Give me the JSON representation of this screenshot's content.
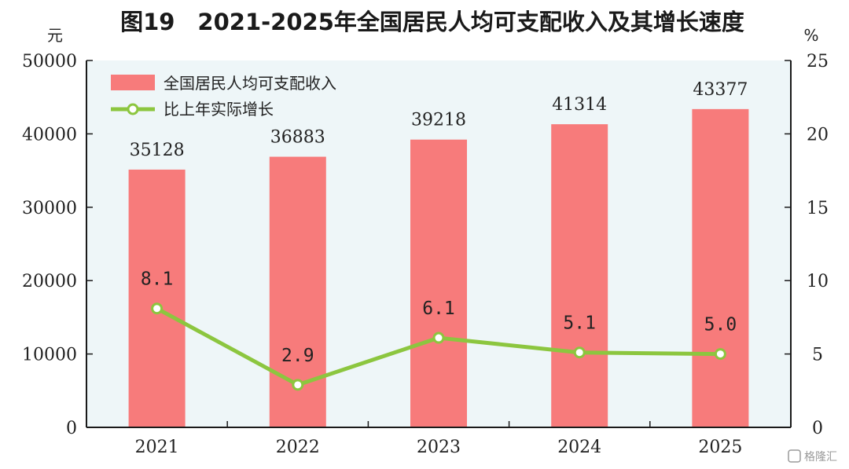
{
  "title": "图19　2021-2025年全国居民人均可支配收入及其增长速度",
  "watermark": "格隆汇",
  "chart_data": {
    "type": "bar",
    "title": "图19　2021-2025年全国居民人均可支配收入及其增长速度",
    "categories": [
      "2021",
      "2022",
      "2023",
      "2024",
      "2025"
    ],
    "left_axis": {
      "unit": "元",
      "ylim": [
        0,
        50000
      ],
      "ticks": [
        "0",
        "10000",
        "20000",
        "30000",
        "40000",
        "50000"
      ]
    },
    "right_axis": {
      "unit": "%",
      "ylim": [
        0,
        25
      ],
      "ticks": [
        "0",
        "5",
        "10",
        "15",
        "20",
        "25"
      ]
    },
    "series": [
      {
        "name": "全国居民人均可支配收入",
        "type": "bar",
        "axis": "left",
        "values": [
          35128,
          36883,
          39218,
          41314,
          43377
        ],
        "labels": [
          "35128",
          "36883",
          "39218",
          "41314",
          "43377"
        ]
      },
      {
        "name": "比上年实际增长",
        "type": "line",
        "axis": "right",
        "values": [
          8.1,
          2.9,
          6.1,
          5.1,
          5.0
        ],
        "labels": [
          "8.1",
          "2.9",
          "6.1",
          "5.1",
          "5.0"
        ]
      }
    ],
    "colors": {
      "bar": "#f77b7b",
      "line": "#8cc63f",
      "plot_bg": "#eef6f8",
      "axis": "#1a1a1a"
    },
    "grid": false,
    "legend_position": "top-left"
  }
}
